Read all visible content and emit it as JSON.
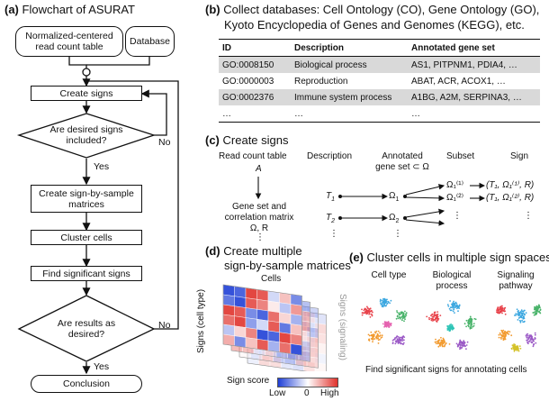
{
  "panel_a": {
    "letter": "(a)",
    "title": "Flowchart of ASURAT",
    "input1": "Normalized-centered read count table",
    "input2": "Database",
    "step_create_signs": "Create signs",
    "decision1": "Are desired signs included?",
    "no1": "No",
    "yes1": "Yes",
    "step_matrices": "Create sign-by-sample matrices",
    "step_cluster": "Cluster cells",
    "step_find": "Find significant signs",
    "decision2": "Are results as desired?",
    "no2": "No",
    "yes2": "Yes",
    "step_conclusion": "Conclusion"
  },
  "panel_b": {
    "letter": "(b)",
    "title_line1": "Collect databases: Cell Ontology (CO), Gene Ontology (GO),",
    "title_line2": "Kyoto Encyclopedia of Genes and Genomes (KEGG), etc.",
    "headers": [
      "ID",
      "Description",
      "Annotated gene set"
    ],
    "rows": [
      [
        "GO:0008150",
        "Biological process",
        "AS1, PITPNM1, PDIA4, …"
      ],
      [
        "GO:0000003",
        "Reproduction",
        "ABAT, ACR, ACOX1, …"
      ],
      [
        "GO:0002376",
        "Immune system process",
        "A1BG, A2M, SERPINA3, …"
      ],
      [
        "…",
        "…",
        "…"
      ]
    ]
  },
  "panel_c": {
    "letter": "(c)",
    "title": "Create signs",
    "col_read": "Read count table",
    "col_desc": "Description",
    "col_annot_1": "Annotated",
    "col_annot_2": "gene set ⊂ Ω",
    "col_subset": "Subset",
    "col_sign": "Sign",
    "a_symbol": "A",
    "gene_set_1": "Gene set and",
    "gene_set_2": "correlation matrix",
    "gene_set_3": "Ω, R",
    "t1": "T",
    "t1_sub": "1",
    "t2": "T",
    "t2_sub": "2",
    "omega1": "Ω",
    "omega1_sub": "1",
    "omega2": "Ω",
    "omega2_sub": "2",
    "subset1": "Ω₁⁽¹⁾",
    "subset2": "Ω₁⁽²⁾",
    "sign1": "(T₁, Ω₁⁽¹⁾, R)",
    "sign2": "(T₁, Ω₁⁽²⁾, R)",
    "vdots": "⋮"
  },
  "panel_d": {
    "letter": "(d)",
    "title_line1": "Create multiple",
    "title_line2": "sign-by-sample matrices",
    "cells_label": "Cells",
    "y_label": "Signs (cell type)",
    "y_label_right": "Signs (signaling)",
    "legend_title": "Sign score",
    "legend_low": "Low",
    "legend_mid": "0",
    "legend_high": "High",
    "colors": {
      "low": "#1f3fd6",
      "mid": "#ffffff",
      "high": "#e0322c"
    }
  },
  "panel_e": {
    "letter": "(e)",
    "title": "Cluster cells in multiple sign spaces",
    "col1": "Cell type",
    "col2_line1": "Biological",
    "col2_line2": "process",
    "col3_line1": "Signaling",
    "col3_line2": "pathway",
    "footer": "Find significant signs for annotating cells"
  }
}
